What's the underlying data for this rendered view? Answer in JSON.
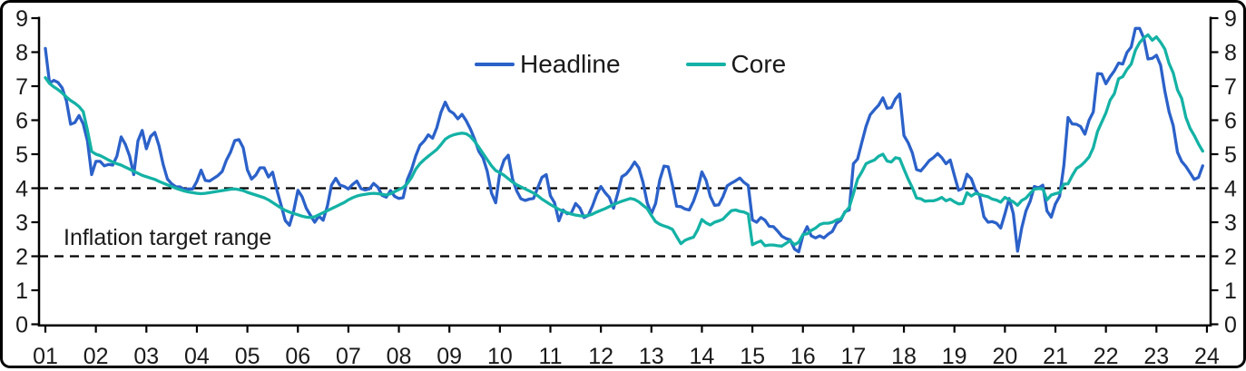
{
  "chart_data": {
    "type": "line",
    "title": "",
    "frequency": "monthly",
    "x_start": "2001-01",
    "x_end": "2023-12",
    "x_tick_labels": [
      "01",
      "02",
      "03",
      "04",
      "05",
      "06",
      "07",
      "08",
      "09",
      "10",
      "11",
      "12",
      "13",
      "14",
      "15",
      "16",
      "17",
      "18",
      "19",
      "20",
      "21",
      "22",
      "23",
      "24"
    ],
    "y_ticks": [
      0,
      1,
      2,
      3,
      4,
      5,
      6,
      7,
      8,
      9
    ],
    "ylim": [
      0,
      9
    ],
    "grid": false,
    "legend_position": "top-center",
    "annotation": "Inflation target range",
    "target_range": [
      2,
      4
    ],
    "target_line_color": "#000000",
    "axis_color": "#000000",
    "series": [
      {
        "name": "Headline",
        "color": "#2b61c9",
        "values": [
          [
            8.11,
            7.09,
            7.17,
            7.11,
            6.95,
            6.57,
            5.88,
            5.93,
            6.14,
            5.89,
            5.39,
            4.4
          ],
          [
            4.79,
            4.79,
            4.66,
            4.7,
            4.68,
            4.94,
            5.51,
            5.29,
            4.95,
            4.4,
            5.39,
            5.7
          ],
          [
            5.16,
            5.52,
            5.64,
            5.25,
            4.7,
            4.27,
            4.13,
            4.04,
            4.04,
            3.96,
            3.98,
            3.98
          ],
          [
            4.2,
            4.53,
            4.23,
            4.21,
            4.29,
            4.37,
            4.49,
            4.82,
            5.06,
            5.4,
            5.43,
            5.19
          ],
          [
            4.54,
            4.27,
            4.39,
            4.6,
            4.6,
            4.33,
            4.47,
            3.95,
            3.51,
            3.05,
            2.91,
            3.33
          ],
          [
            3.94,
            3.75,
            3.41,
            3.2,
            3.0,
            3.18,
            3.06,
            3.47,
            4.09,
            4.29,
            4.09,
            4.05
          ],
          [
            3.98,
            4.11,
            4.21,
            3.99,
            3.95,
            3.98,
            4.14,
            4.03,
            3.79,
            3.74,
            3.93,
            3.76
          ],
          [
            3.7,
            3.72,
            4.25,
            4.55,
            4.95,
            5.26,
            5.39,
            5.57,
            5.47,
            5.78,
            6.23,
            6.53
          ],
          [
            6.28,
            6.2,
            6.04,
            6.17,
            5.98,
            5.74,
            5.44,
            5.08,
            4.89,
            4.5,
            3.86,
            3.57
          ],
          [
            4.46,
            4.83,
            4.97,
            4.27,
            3.92,
            3.69,
            3.64,
            3.68,
            3.7,
            4.02,
            4.32,
            4.4
          ],
          [
            3.78,
            3.57,
            3.04,
            3.36,
            3.25,
            3.28,
            3.55,
            3.42,
            3.14,
            3.2,
            3.48,
            3.82
          ],
          [
            4.05,
            3.87,
            3.73,
            3.41,
            3.85,
            4.34,
            4.42,
            4.57,
            4.77,
            4.6,
            4.18,
            3.57
          ],
          [
            3.25,
            3.55,
            4.25,
            4.65,
            4.63,
            4.09,
            3.47,
            3.46,
            3.39,
            3.36,
            3.62,
            3.97
          ],
          [
            4.48,
            4.23,
            3.76,
            3.5,
            3.51,
            3.75,
            4.07,
            4.15,
            4.22,
            4.3,
            4.17,
            4.08
          ],
          [
            3.07,
            3.0,
            3.14,
            3.06,
            2.88,
            2.87,
            2.74,
            2.59,
            2.52,
            2.48,
            2.21,
            2.13
          ],
          [
            2.61,
            2.87,
            2.6,
            2.54,
            2.6,
            2.54,
            2.65,
            2.73,
            2.97,
            3.06,
            3.31,
            3.36
          ],
          [
            4.72,
            4.86,
            5.35,
            5.82,
            6.16,
            6.31,
            6.44,
            6.66,
            6.35,
            6.37,
            6.63,
            6.77
          ],
          [
            5.55,
            5.34,
            5.04,
            4.55,
            4.51,
            4.65,
            4.81,
            4.9,
            5.02,
            4.9,
            4.72,
            4.83
          ],
          [
            4.37,
            3.94,
            4.0,
            4.41,
            4.28,
            3.95,
            3.78,
            3.16,
            3.0,
            3.02,
            2.97,
            2.83
          ],
          [
            3.24,
            3.7,
            3.25,
            2.15,
            2.84,
            3.33,
            3.62,
            4.05,
            4.01,
            4.09,
            3.33,
            3.15
          ],
          [
            3.54,
            3.76,
            4.67,
            6.08,
            5.89,
            5.88,
            5.81,
            5.59,
            6.0,
            6.24,
            7.37,
            7.36
          ],
          [
            7.07,
            7.28,
            7.45,
            7.68,
            7.65,
            7.99,
            8.15,
            8.7,
            8.7,
            8.41,
            7.8,
            7.82
          ],
          [
            7.91,
            7.62,
            6.85,
            6.25,
            5.84,
            5.06,
            4.79,
            4.64,
            4.45,
            4.26,
            4.32,
            4.66
          ]
        ]
      },
      {
        "name": "Core",
        "color": "#14b2a5",
        "values": [
          [
            7.25,
            7.08,
            6.98,
            6.9,
            6.8,
            6.68,
            6.58,
            6.5,
            6.4,
            6.25,
            5.7,
            5.08
          ],
          [
            5.0,
            4.96,
            4.9,
            4.83,
            4.77,
            4.72,
            4.68,
            4.62,
            4.56,
            4.5,
            4.44,
            4.38
          ],
          [
            4.34,
            4.3,
            4.26,
            4.2,
            4.15,
            4.1,
            4.05,
            4.0,
            3.96,
            3.92,
            3.89,
            3.87
          ],
          [
            3.85,
            3.84,
            3.85,
            3.87,
            3.89,
            3.91,
            3.93,
            3.95,
            3.97,
            3.98,
            3.96,
            3.93
          ],
          [
            3.88,
            3.84,
            3.8,
            3.76,
            3.72,
            3.66,
            3.58,
            3.5,
            3.42,
            3.35,
            3.3,
            3.26
          ],
          [
            3.22,
            3.18,
            3.15,
            3.14,
            3.16,
            3.22,
            3.28,
            3.34,
            3.4,
            3.46,
            3.52,
            3.58
          ],
          [
            3.66,
            3.72,
            3.77,
            3.8,
            3.82,
            3.84,
            3.85,
            3.84,
            3.82,
            3.8,
            3.84,
            3.9
          ],
          [
            3.96,
            4.02,
            4.14,
            4.32,
            4.56,
            4.72,
            4.84,
            4.94,
            5.04,
            5.14,
            5.28,
            5.44
          ],
          [
            5.52,
            5.57,
            5.6,
            5.62,
            5.6,
            5.52,
            5.38,
            5.2,
            5.02,
            4.84,
            4.66,
            4.52
          ],
          [
            4.46,
            4.38,
            4.28,
            4.18,
            4.1,
            4.04,
            3.98,
            3.92,
            3.86,
            3.78,
            3.68,
            3.6
          ],
          [
            3.52,
            3.45,
            3.38,
            3.32,
            3.28,
            3.24,
            3.21,
            3.19,
            3.18,
            3.2,
            3.24,
            3.3
          ],
          [
            3.35,
            3.4,
            3.46,
            3.52,
            3.57,
            3.62,
            3.66,
            3.7,
            3.67,
            3.6,
            3.5,
            3.4
          ],
          [
            3.2,
            3.02,
            2.94,
            2.89,
            2.85,
            2.79,
            2.58,
            2.37,
            2.47,
            2.52,
            2.56,
            2.78
          ],
          [
            3.08,
            2.98,
            2.92,
            3.0,
            3.04,
            3.09,
            3.22,
            3.34,
            3.36,
            3.32,
            3.3,
            3.24
          ],
          [
            2.34,
            2.4,
            2.45,
            2.31,
            2.33,
            2.33,
            2.31,
            2.3,
            2.38,
            2.46,
            2.34,
            2.41
          ],
          [
            2.64,
            2.66,
            2.76,
            2.83,
            2.93,
            2.97,
            2.97,
            3.0,
            3.07,
            3.1,
            3.29,
            3.44
          ],
          [
            3.84,
            4.27,
            4.48,
            4.72,
            4.78,
            4.83,
            4.94,
            5.0,
            4.8,
            4.77,
            4.9,
            4.87
          ],
          [
            4.56,
            4.27,
            4.02,
            3.71,
            3.69,
            3.62,
            3.63,
            3.63,
            3.67,
            3.73,
            3.63,
            3.68
          ],
          [
            3.6,
            3.54,
            3.55,
            3.87,
            3.77,
            3.85,
            3.82,
            3.78,
            3.75,
            3.68,
            3.65,
            3.59
          ],
          [
            3.73,
            3.66,
            3.6,
            3.5,
            3.64,
            3.71,
            3.85,
            3.97,
            3.99,
            3.98,
            3.66,
            3.8
          ],
          [
            3.84,
            3.87,
            4.12,
            4.13,
            4.37,
            4.58,
            4.66,
            4.78,
            4.92,
            5.19,
            5.67,
            5.94
          ],
          [
            6.21,
            6.59,
            6.78,
            7.22,
            7.28,
            7.49,
            7.65,
            8.05,
            8.28,
            8.42,
            8.51,
            8.35
          ],
          [
            8.45,
            8.29,
            8.09,
            7.67,
            7.39,
            6.89,
            6.64,
            6.08,
            5.76,
            5.55,
            5.3,
            5.09
          ]
        ]
      }
    ]
  }
}
